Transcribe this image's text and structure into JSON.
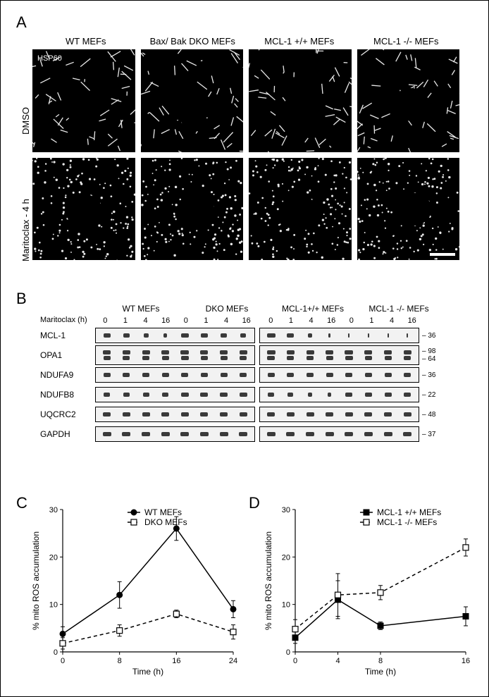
{
  "panels": {
    "A": "A",
    "B": "B",
    "C": "C",
    "D": "D"
  },
  "A": {
    "cols": [
      "WT MEFs",
      "Bax/ Bak DKO MEFs",
      "MCL-1 +/+ MEFs",
      "MCL-1 -/- MEFs"
    ],
    "rows": [
      "DMSO",
      "Maritoclax - 4 h"
    ],
    "hsp": "HSP60"
  },
  "B": {
    "groups": [
      "WT MEFs",
      "DKO MEFs",
      "MCL-1+/+ MEFs",
      "MCL-1 -/- MEFs"
    ],
    "timelabel": "Maritoclax (h)",
    "times": [
      "0",
      "1",
      "4",
      "16",
      "0",
      "1",
      "4",
      "16",
      "0",
      "1",
      "4",
      "16",
      "0",
      "1",
      "4",
      "16"
    ],
    "rows": [
      {
        "name": "MCL-1",
        "mw": "36",
        "widths": [
          10,
          9,
          7,
          5,
          11,
          10,
          9,
          8,
          12,
          10,
          6,
          3,
          2,
          2,
          2,
          2
        ]
      },
      {
        "name": "OPA1",
        "mw": "98",
        "mw2": "64",
        "double": true,
        "widths": [
          11,
          11,
          11,
          11,
          12,
          11,
          11,
          11,
          12,
          11,
          11,
          11,
          12,
          11,
          11,
          11
        ]
      },
      {
        "name": "NDUFA9",
        "mw": "36",
        "widths": [
          10,
          10,
          10,
          10,
          10,
          10,
          10,
          10,
          10,
          10,
          10,
          10,
          10,
          10,
          10,
          10
        ]
      },
      {
        "name": "NDUFB8",
        "mw": "22",
        "widths": [
          9,
          9,
          9,
          9,
          11,
          11,
          11,
          11,
          9,
          8,
          6,
          5,
          10,
          10,
          10,
          10
        ]
      },
      {
        "name": "UQCRC2",
        "mw": "48",
        "widths": [
          11,
          11,
          11,
          11,
          11,
          11,
          11,
          11,
          11,
          11,
          11,
          11,
          11,
          11,
          11,
          11
        ]
      },
      {
        "name": "GAPDH",
        "mw": "37",
        "widths": [
          12,
          12,
          12,
          12,
          12,
          12,
          12,
          12,
          12,
          12,
          12,
          12,
          12,
          12,
          12,
          12
        ]
      }
    ]
  },
  "C": {
    "xlabel": "Time (h)",
    "ylabel": "% mito ROS accumulation",
    "xlim": [
      0,
      24
    ],
    "ylim": [
      0,
      30
    ],
    "xticks": [
      0,
      8,
      16,
      24
    ],
    "yticks": [
      0,
      10,
      20,
      30
    ],
    "legend": [
      {
        "label": "WT MEFs",
        "style": "solid",
        "marker": "circle-solid"
      },
      {
        "label": "DKO MEFs",
        "style": "dash",
        "marker": "square-open"
      }
    ],
    "series": [
      {
        "style": "solid",
        "marker": "circle-solid",
        "pts": [
          {
            "x": 0,
            "y": 3.8,
            "e": 1.5
          },
          {
            "x": 8,
            "y": 12,
            "e": 2.8
          },
          {
            "x": 16,
            "y": 26,
            "e": 2.5
          },
          {
            "x": 24,
            "y": 9,
            "e": 1.8
          }
        ]
      },
      {
        "style": "dash",
        "marker": "square-open",
        "pts": [
          {
            "x": 0,
            "y": 1.8,
            "e": 1.2
          },
          {
            "x": 8,
            "y": 4.5,
            "e": 1.2
          },
          {
            "x": 16,
            "y": 8,
            "e": 0.8
          },
          {
            "x": 24,
            "y": 4.2,
            "e": 1.5
          }
        ]
      }
    ]
  },
  "D": {
    "xlabel": "Time (h)",
    "ylabel": "% mito ROS accumulation",
    "xlim": [
      0,
      16
    ],
    "ylim": [
      0,
      30
    ],
    "xticks": [
      0,
      4,
      8,
      16
    ],
    "yticks": [
      0,
      10,
      20,
      30
    ],
    "legend": [
      {
        "label": "MCL-1 +/+ MEFs",
        "style": "solid",
        "marker": "square-solid"
      },
      {
        "label": "MCL-1 -/- MEFs",
        "style": "dash",
        "marker": "square-open"
      }
    ],
    "series": [
      {
        "style": "solid",
        "marker": "square-solid",
        "pts": [
          {
            "x": 0,
            "y": 3,
            "e": 1.2
          },
          {
            "x": 4,
            "y": 11,
            "e": 4
          },
          {
            "x": 8,
            "y": 5.5,
            "e": 0.8
          },
          {
            "x": 16,
            "y": 7.5,
            "e": 2
          }
        ]
      },
      {
        "style": "dash",
        "marker": "square-open",
        "pts": [
          {
            "x": 0,
            "y": 4.8,
            "e": 2
          },
          {
            "x": 4,
            "y": 12,
            "e": 4.5
          },
          {
            "x": 8,
            "y": 12.5,
            "e": 1.5
          },
          {
            "x": 16,
            "y": 22,
            "e": 1.8
          }
        ]
      }
    ]
  }
}
